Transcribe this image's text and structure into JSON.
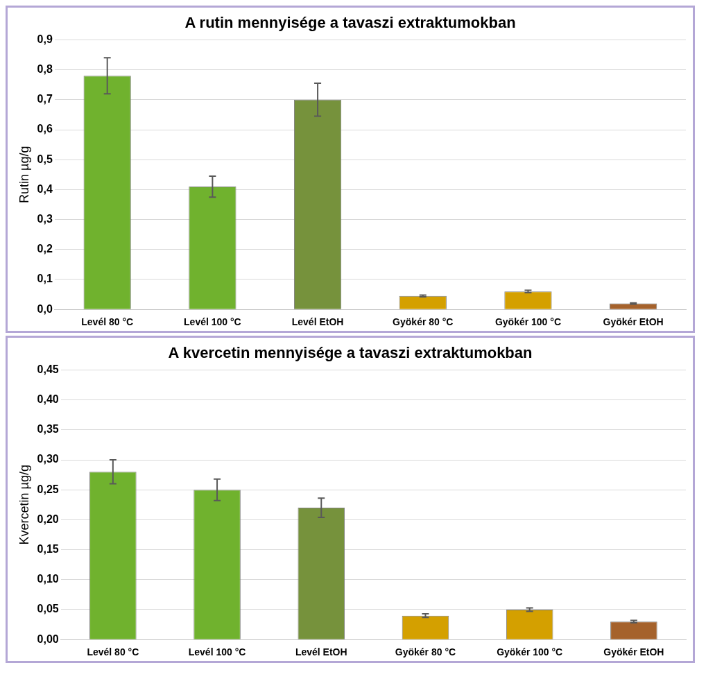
{
  "chart_data": [
    {
      "type": "bar",
      "title": "A rutin mennyisége a tavaszi extraktumokban",
      "ylabel": "Rutin µg/g",
      "categories": [
        "Levél 80 °C",
        "Levél 100 °C",
        "Levél EtOH",
        "Gyökér 80 °C",
        "Gyökér 100 °C",
        "Gyökér EtOH"
      ],
      "values": [
        0.78,
        0.41,
        0.7,
        0.045,
        0.06,
        0.02
      ],
      "errors": [
        0.06,
        0.035,
        0.055,
        0.003,
        0.004,
        0.002
      ],
      "colors": [
        "#70b22e",
        "#70b22e",
        "#76923c",
        "#d4a000",
        "#d4a000",
        "#a5622c"
      ],
      "ylim": [
        0,
        0.9
      ],
      "yticks": [
        {
          "value": 0,
          "label": "0,0"
        },
        {
          "value": 0.1,
          "label": "0,1"
        },
        {
          "value": 0.2,
          "label": "0,2"
        },
        {
          "value": 0.3,
          "label": "0,3"
        },
        {
          "value": 0.4,
          "label": "0,4"
        },
        {
          "value": 0.5,
          "label": "0,5"
        },
        {
          "value": 0.6,
          "label": "0,6"
        },
        {
          "value": 0.7,
          "label": "0,7"
        },
        {
          "value": 0.8,
          "label": "0,8"
        },
        {
          "value": 0.9,
          "label": "0,9"
        }
      ],
      "grid": "y",
      "legend": false
    },
    {
      "type": "bar",
      "title": "A kvercetin mennyisége a tavaszi extraktumokban",
      "ylabel": "Kvercetin µg/g",
      "categories": [
        "Levél 80 °C",
        "Levél 100 °C",
        "Levél EtOH",
        "Gyökér 80 °C",
        "Gyökér 100 °C",
        "Gyökér EtOH"
      ],
      "values": [
        0.28,
        0.25,
        0.22,
        0.04,
        0.05,
        0.03
      ],
      "errors": [
        0.02,
        0.018,
        0.016,
        0.003,
        0.003,
        0.002
      ],
      "colors": [
        "#70b22e",
        "#70b22e",
        "#76923c",
        "#d4a000",
        "#d4a000",
        "#a5622c"
      ],
      "ylim": [
        0,
        0.45
      ],
      "yticks": [
        {
          "value": 0,
          "label": "0,00"
        },
        {
          "value": 0.05,
          "label": "0,05"
        },
        {
          "value": 0.1,
          "label": "0,10"
        },
        {
          "value": 0.15,
          "label": "0,15"
        },
        {
          "value": 0.2,
          "label": "0,20"
        },
        {
          "value": 0.25,
          "label": "0,25"
        },
        {
          "value": 0.3,
          "label": "0,30"
        },
        {
          "value": 0.35,
          "label": "0,35"
        },
        {
          "value": 0.4,
          "label": "0,40"
        },
        {
          "value": 0.45,
          "label": "0,45"
        }
      ],
      "grid": "y",
      "legend": false
    }
  ]
}
